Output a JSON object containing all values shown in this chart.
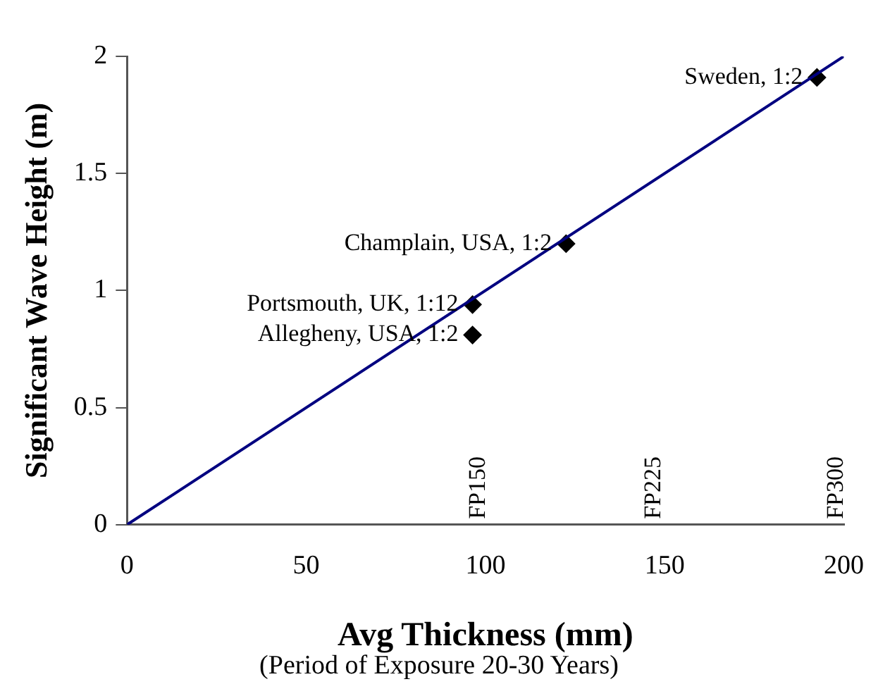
{
  "chart_data": {
    "type": "scatter",
    "xlabel": "Avg Thickness (mm)",
    "ylabel": "Significant Wave Height (m)",
    "xlim": [
      0,
      200
    ],
    "xticks": [
      0,
      50,
      100,
      150,
      200
    ],
    "ylim": [
      0,
      2
    ],
    "yticks": [
      0,
      0.5,
      1,
      1.5,
      2
    ],
    "grid": false,
    "legend": false,
    "series": [
      {
        "type": "line",
        "color": "#000080",
        "x": [
          0,
          200
        ],
        "values": [
          0,
          2
        ],
        "marker": "none"
      },
      {
        "color": "#000000",
        "x": [
          96.4,
          96.4,
          122.5,
          192.5
        ],
        "values": [
          0.81,
          0.94,
          1.2,
          1.91
        ],
        "marker": "diamond"
      }
    ],
    "annotations": [
      {
        "text": "Allegheny, USA, 1:2",
        "x": 96.4,
        "y": 0.81
      },
      {
        "text": "Portsmouth, UK, 1:12",
        "x": 96.4,
        "y": 0.94
      },
      {
        "text": "Champlain, USA, 1:2",
        "x": 122.5,
        "y": 1.2
      },
      {
        "text": "Sweden, 1:2",
        "x": 192.5,
        "y": 1.91
      },
      "FP150",
      "FP225",
      "FP300",
      "(Period of Exposure 20-30 Years)"
    ]
  }
}
